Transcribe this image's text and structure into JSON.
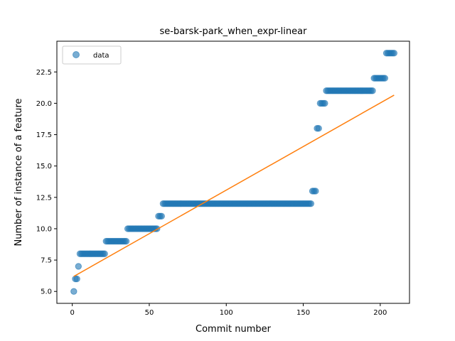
{
  "chart_data": {
    "type": "scatter",
    "title": "se-barsk-park_when_expr-linear",
    "xlabel": "Commit number",
    "ylabel": "Number of instance of a feature",
    "xlim": [
      -10,
      219
    ],
    "ylim": [
      4.05,
      24.95
    ],
    "xticks": [
      0,
      50,
      100,
      150,
      200
    ],
    "xtick_labels": [
      "0",
      "50",
      "100",
      "150",
      "200"
    ],
    "yticks": [
      5.0,
      7.5,
      10.0,
      12.5,
      15.0,
      17.5,
      20.0,
      22.5
    ],
    "ytick_labels": [
      "5.0",
      "7.5",
      "10.0",
      "12.5",
      "15.0",
      "17.5",
      "20.0",
      "22.5"
    ],
    "grid": false,
    "legend_position": "upper-left",
    "series": [
      {
        "name": "data",
        "kind": "scatter",
        "color": "#1f77b4",
        "segments": [
          {
            "x_start": 1,
            "x_end": 1,
            "y": 5
          },
          {
            "x_start": 2,
            "x_end": 3,
            "y": 6
          },
          {
            "x_start": 4,
            "x_end": 4,
            "y": 7
          },
          {
            "x_start": 5,
            "x_end": 21,
            "y": 8
          },
          {
            "x_start": 22,
            "x_end": 35,
            "y": 9
          },
          {
            "x_start": 36,
            "x_end": 55,
            "y": 10
          },
          {
            "x_start": 56,
            "x_end": 58,
            "y": 11
          },
          {
            "x_start": 59,
            "x_end": 155,
            "y": 12
          },
          {
            "x_start": 156,
            "x_end": 158,
            "y": 13
          },
          {
            "x_start": 159,
            "x_end": 160,
            "y": 18
          },
          {
            "x_start": 161,
            "x_end": 164,
            "y": 20
          },
          {
            "x_start": 165,
            "x_end": 195,
            "y": 21
          },
          {
            "x_start": 196,
            "x_end": 203,
            "y": 22
          },
          {
            "x_start": 204,
            "x_end": 209,
            "y": 24
          }
        ]
      },
      {
        "kind": "line",
        "color": "#ff7f0e",
        "x": [
          1,
          209
        ],
        "y": [
          6.2,
          20.65
        ]
      }
    ]
  }
}
